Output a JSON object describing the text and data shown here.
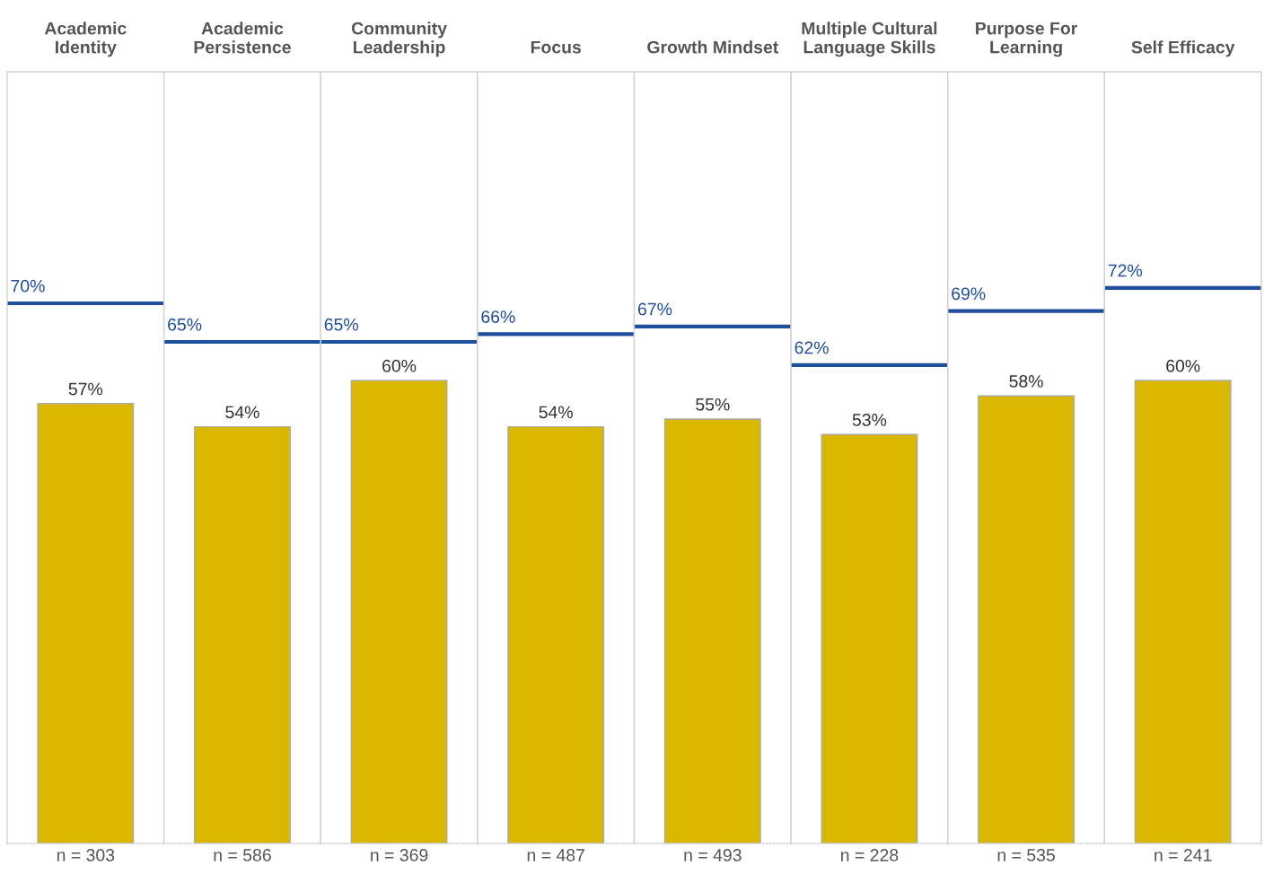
{
  "chart_data": [
    {
      "type": "bar",
      "categories": [
        "Academic\nIdentity"
      ],
      "values": [
        57
      ],
      "value_labels": [
        "57%"
      ],
      "color": "#dbb800",
      "ylim": [
        0,
        100
      ],
      "xlabel": "n = 303",
      "tick_labels": "x",
      "grid": false,
      "ref_lines": [
        {
          "axis": "y",
          "value": 70,
          "label": "70%",
          "color": "#1f4e9a"
        }
      ]
    },
    {
      "type": "bar",
      "categories": [
        "Academic\nPersistence"
      ],
      "values": [
        54
      ],
      "value_labels": [
        "54%"
      ],
      "color": "#dbb800",
      "ylim": [
        0,
        100
      ],
      "xlabel": "n = 586",
      "tick_labels": "x",
      "grid": false,
      "ref_lines": [
        {
          "axis": "y",
          "value": 65,
          "label": "65%",
          "color": "#1f4e9a"
        }
      ]
    },
    {
      "type": "bar",
      "categories": [
        "Community\nLeadership"
      ],
      "values": [
        60
      ],
      "value_labels": [
        "60%"
      ],
      "color": "#dbb800",
      "ylim": [
        0,
        100
      ],
      "xlabel": "n = 369",
      "tick_labels": "x",
      "grid": false,
      "ref_lines": [
        {
          "axis": "y",
          "value": 65,
          "label": "65%",
          "color": "#1f4e9a"
        }
      ]
    },
    {
      "type": "bar",
      "categories": [
        "Focus"
      ],
      "values": [
        54
      ],
      "value_labels": [
        "54%"
      ],
      "color": "#dbb800",
      "ylim": [
        0,
        100
      ],
      "xlabel": "n = 487",
      "tick_labels": "x",
      "grid": false,
      "ref_lines": [
        {
          "axis": "y",
          "value": 66,
          "label": "66%",
          "color": "#1f4e9a"
        }
      ]
    },
    {
      "type": "bar",
      "categories": [
        "Growth Mindset"
      ],
      "values": [
        55
      ],
      "value_labels": [
        "55%"
      ],
      "color": "#dbb800",
      "ylim": [
        0,
        100
      ],
      "xlabel": "n = 493",
      "tick_labels": "x",
      "grid": false,
      "ref_lines": [
        {
          "axis": "y",
          "value": 67,
          "label": "67%",
          "color": "#1f4e9a"
        }
      ]
    },
    {
      "type": "bar",
      "categories": [
        "Multiple Cultural\nLanguage Skills"
      ],
      "values": [
        53
      ],
      "value_labels": [
        "53%"
      ],
      "color": "#dbb800",
      "ylim": [
        0,
        100
      ],
      "xlabel": "n = 228",
      "tick_labels": "x",
      "grid": false,
      "ref_lines": [
        {
          "axis": "y",
          "value": 62,
          "label": "62%",
          "color": "#1f4e9a"
        }
      ]
    },
    {
      "type": "bar",
      "categories": [
        "Purpose For\nLearning"
      ],
      "values": [
        58
      ],
      "value_labels": [
        "58%"
      ],
      "color": "#dbb800",
      "ylim": [
        0,
        100
      ],
      "xlabel": "n = 535",
      "tick_labels": "x",
      "grid": false,
      "ref_lines": [
        {
          "axis": "y",
          "value": 69,
          "label": "69%",
          "color": "#1f4e9a"
        }
      ]
    },
    {
      "type": "bar",
      "categories": [
        "Self Efficacy"
      ],
      "values": [
        60
      ],
      "value_labels": [
        "60%"
      ],
      "color": "#dbb800",
      "ylim": [
        0,
        100
      ],
      "xlabel": "n = 241",
      "tick_labels": "x",
      "grid": false,
      "ref_lines": [
        {
          "axis": "y",
          "value": 72,
          "label": "72%",
          "color": "#1f4e9a"
        }
      ]
    }
  ]
}
